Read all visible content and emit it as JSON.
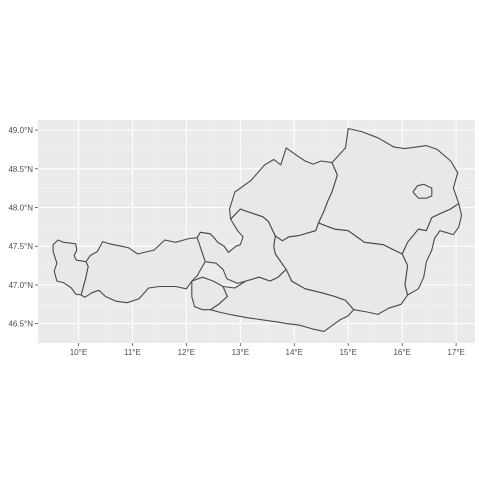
{
  "chart_data": {
    "type": "map",
    "title": "",
    "xlabel": "",
    "ylabel": "",
    "xlim": [
      9.25,
      17.35
    ],
    "ylim": [
      46.25,
      49.13
    ],
    "x_ticks": [
      {
        "value": 10,
        "label": "10°E"
      },
      {
        "value": 11,
        "label": "11°E"
      },
      {
        "value": 12,
        "label": "12°E"
      },
      {
        "value": 13,
        "label": "13°E"
      },
      {
        "value": 14,
        "label": "14°E"
      },
      {
        "value": 15,
        "label": "15°E"
      },
      {
        "value": 16,
        "label": "16°E"
      },
      {
        "value": 17,
        "label": "17°E"
      }
    ],
    "y_ticks": [
      {
        "value": 46.5,
        "label": "46.5°N"
      },
      {
        "value": 47.0,
        "label": "47.0°N"
      },
      {
        "value": 47.5,
        "label": "47.5°N"
      },
      {
        "value": 48.0,
        "label": "48.0°N"
      },
      {
        "value": 48.5,
        "label": "48.5°N"
      },
      {
        "value": 49.0,
        "label": "49.0°N"
      }
    ],
    "grid": true,
    "colors": {
      "panel_background": "#ebebeb",
      "grid_major": "#ffffff",
      "region_fill": "#e8e8e8",
      "region_border": "#4a4a4a",
      "tick_text": "#4d4d4d"
    },
    "regions": [
      {
        "id": "vorarlberg",
        "coords": [
          [
            9.53,
            47.52
          ],
          [
            9.62,
            47.58
          ],
          [
            9.72,
            47.55
          ],
          [
            9.85,
            47.54
          ],
          [
            9.95,
            47.53
          ],
          [
            9.97,
            47.45
          ],
          [
            9.92,
            47.38
          ],
          [
            9.96,
            47.32
          ],
          [
            10.14,
            47.3
          ],
          [
            10.18,
            47.24
          ],
          [
            10.14,
            47.1
          ],
          [
            10.1,
            47.0
          ],
          [
            10.05,
            46.87
          ],
          [
            9.95,
            46.88
          ],
          [
            9.87,
            46.96
          ],
          [
            9.72,
            47.03
          ],
          [
            9.6,
            47.05
          ],
          [
            9.55,
            47.18
          ],
          [
            9.6,
            47.28
          ],
          [
            9.53,
            47.43
          ]
        ]
      },
      {
        "id": "tirol",
        "coords": [
          [
            10.14,
            47.3
          ],
          [
            10.22,
            47.38
          ],
          [
            10.35,
            47.43
          ],
          [
            10.45,
            47.56
          ],
          [
            10.58,
            47.53
          ],
          [
            10.8,
            47.5
          ],
          [
            10.93,
            47.48
          ],
          [
            11.1,
            47.4
          ],
          [
            11.22,
            47.42
          ],
          [
            11.4,
            47.45
          ],
          [
            11.6,
            47.58
          ],
          [
            11.8,
            47.55
          ],
          [
            12.05,
            47.6
          ],
          [
            12.2,
            47.61
          ],
          [
            12.26,
            47.68
          ],
          [
            12.44,
            47.66
          ],
          [
            12.5,
            47.62
          ],
          [
            12.58,
            47.55
          ],
          [
            12.7,
            47.5
          ],
          [
            12.78,
            47.42
          ],
          [
            12.66,
            47.38
          ],
          [
            12.5,
            47.32
          ],
          [
            12.35,
            47.3
          ],
          [
            12.2,
            47.12
          ],
          [
            12.1,
            47.05
          ],
          [
            12.0,
            46.95
          ],
          [
            11.8,
            46.98
          ],
          [
            11.5,
            46.98
          ],
          [
            11.3,
            46.96
          ],
          [
            11.12,
            46.82
          ],
          [
            10.9,
            46.77
          ],
          [
            10.7,
            46.79
          ],
          [
            10.5,
            46.85
          ],
          [
            10.38,
            46.93
          ],
          [
            10.25,
            46.9
          ],
          [
            10.12,
            46.84
          ],
          [
            10.05,
            46.87
          ],
          [
            10.1,
            47.0
          ],
          [
            10.14,
            47.1
          ],
          [
            10.18,
            47.24
          ]
        ]
      },
      {
        "id": "osttirol",
        "coords": [
          [
            12.1,
            47.05
          ],
          [
            12.3,
            47.1
          ],
          [
            12.5,
            47.05
          ],
          [
            12.68,
            46.98
          ],
          [
            12.76,
            46.85
          ],
          [
            12.6,
            46.75
          ],
          [
            12.45,
            46.68
          ],
          [
            12.3,
            46.68
          ],
          [
            12.15,
            46.72
          ],
          [
            12.1,
            46.85
          ]
        ]
      },
      {
        "id": "salzburg",
        "coords": [
          [
            12.2,
            47.61
          ],
          [
            12.26,
            47.68
          ],
          [
            12.44,
            47.66
          ],
          [
            12.5,
            47.62
          ],
          [
            12.58,
            47.55
          ],
          [
            12.7,
            47.5
          ],
          [
            12.78,
            47.42
          ],
          [
            12.92,
            47.5
          ],
          [
            13.0,
            47.52
          ],
          [
            13.05,
            47.62
          ],
          [
            12.95,
            47.7
          ],
          [
            12.82,
            47.85
          ],
          [
            13.0,
            47.98
          ],
          [
            13.12,
            47.95
          ],
          [
            13.25,
            47.92
          ],
          [
            13.42,
            47.88
          ],
          [
            13.52,
            47.82
          ],
          [
            13.65,
            47.63
          ],
          [
            13.62,
            47.5
          ],
          [
            13.65,
            47.4
          ],
          [
            13.75,
            47.3
          ],
          [
            13.85,
            47.2
          ],
          [
            13.7,
            47.1
          ],
          [
            13.55,
            47.05
          ],
          [
            13.35,
            47.1
          ],
          [
            13.1,
            47.05
          ],
          [
            12.95,
            47.02
          ],
          [
            12.75,
            47.08
          ],
          [
            12.68,
            47.2
          ],
          [
            12.55,
            47.28
          ],
          [
            12.35,
            47.3
          ]
        ]
      },
      {
        "id": "oberoesterreich",
        "coords": [
          [
            12.82,
            47.85
          ],
          [
            12.8,
            47.98
          ],
          [
            12.9,
            48.2
          ],
          [
            13.2,
            48.35
          ],
          [
            13.45,
            48.55
          ],
          [
            13.62,
            48.62
          ],
          [
            13.75,
            48.55
          ],
          [
            13.85,
            48.77
          ],
          [
            14.05,
            48.67
          ],
          [
            14.2,
            48.6
          ],
          [
            14.35,
            48.56
          ],
          [
            14.5,
            48.6
          ],
          [
            14.7,
            48.58
          ],
          [
            14.8,
            48.42
          ],
          [
            14.7,
            48.2
          ],
          [
            14.62,
            48.08
          ],
          [
            14.55,
            47.95
          ],
          [
            14.45,
            47.8
          ],
          [
            14.4,
            47.7
          ],
          [
            14.1,
            47.64
          ],
          [
            13.9,
            47.62
          ],
          [
            13.78,
            47.57
          ],
          [
            13.65,
            47.63
          ],
          [
            13.52,
            47.82
          ],
          [
            13.42,
            47.88
          ],
          [
            13.25,
            47.92
          ],
          [
            13.12,
            47.95
          ],
          [
            13.0,
            47.98
          ]
        ]
      },
      {
        "id": "niederoesterreich",
        "coords": [
          [
            14.7,
            48.58
          ],
          [
            14.95,
            48.77
          ],
          [
            15.0,
            49.02
          ],
          [
            15.25,
            48.98
          ],
          [
            15.55,
            48.9
          ],
          [
            15.85,
            48.78
          ],
          [
            16.05,
            48.76
          ],
          [
            16.45,
            48.8
          ],
          [
            16.65,
            48.75
          ],
          [
            16.9,
            48.6
          ],
          [
            17.03,
            48.45
          ],
          [
            16.95,
            48.25
          ],
          [
            17.05,
            48.05
          ],
          [
            16.9,
            47.98
          ],
          [
            16.7,
            47.92
          ],
          [
            16.55,
            47.87
          ],
          [
            16.45,
            47.7
          ],
          [
            16.3,
            47.72
          ],
          [
            16.1,
            47.55
          ],
          [
            16.0,
            47.4
          ],
          [
            15.85,
            47.45
          ],
          [
            15.65,
            47.52
          ],
          [
            15.3,
            47.55
          ],
          [
            15.0,
            47.7
          ],
          [
            14.75,
            47.72
          ],
          [
            14.45,
            47.8
          ],
          [
            14.55,
            47.95
          ],
          [
            14.62,
            48.08
          ],
          [
            14.7,
            48.2
          ],
          [
            14.8,
            48.42
          ]
        ]
      },
      {
        "id": "wien",
        "coords": [
          [
            16.2,
            48.2
          ],
          [
            16.28,
            48.28
          ],
          [
            16.4,
            48.3
          ],
          [
            16.55,
            48.25
          ],
          [
            16.55,
            48.15
          ],
          [
            16.45,
            48.12
          ],
          [
            16.3,
            48.12
          ]
        ]
      },
      {
        "id": "burgenland",
        "coords": [
          [
            16.45,
            47.7
          ],
          [
            16.55,
            47.87
          ],
          [
            16.7,
            47.92
          ],
          [
            16.9,
            47.98
          ],
          [
            17.05,
            48.05
          ],
          [
            17.1,
            47.9
          ],
          [
            17.05,
            47.75
          ],
          [
            16.95,
            47.65
          ],
          [
            16.7,
            47.7
          ],
          [
            16.6,
            47.6
          ],
          [
            16.55,
            47.45
          ],
          [
            16.45,
            47.3
          ],
          [
            16.4,
            47.1
          ],
          [
            16.3,
            46.95
          ],
          [
            16.1,
            46.87
          ],
          [
            16.05,
            47.0
          ],
          [
            16.1,
            47.25
          ],
          [
            16.0,
            47.4
          ],
          [
            16.1,
            47.55
          ],
          [
            16.3,
            47.72
          ]
        ]
      },
      {
        "id": "steiermark",
        "coords": [
          [
            13.65,
            47.63
          ],
          [
            13.78,
            47.57
          ],
          [
            13.9,
            47.62
          ],
          [
            14.1,
            47.64
          ],
          [
            14.4,
            47.7
          ],
          [
            14.45,
            47.8
          ],
          [
            14.75,
            47.72
          ],
          [
            15.0,
            47.7
          ],
          [
            15.3,
            47.55
          ],
          [
            15.65,
            47.52
          ],
          [
            15.85,
            47.45
          ],
          [
            16.0,
            47.4
          ],
          [
            16.1,
            47.25
          ],
          [
            16.05,
            47.0
          ],
          [
            16.1,
            46.87
          ],
          [
            15.98,
            46.75
          ],
          [
            15.75,
            46.7
          ],
          [
            15.55,
            46.62
          ],
          [
            15.35,
            46.65
          ],
          [
            15.1,
            46.68
          ],
          [
            14.95,
            46.8
          ],
          [
            14.75,
            46.85
          ],
          [
            14.5,
            46.9
          ],
          [
            14.2,
            46.95
          ],
          [
            13.95,
            47.05
          ],
          [
            13.85,
            47.2
          ],
          [
            13.75,
            47.3
          ],
          [
            13.65,
            47.4
          ],
          [
            13.62,
            47.5
          ]
        ]
      },
      {
        "id": "kaernten",
        "coords": [
          [
            12.68,
            46.98
          ],
          [
            12.9,
            46.96
          ],
          [
            13.1,
            47.05
          ],
          [
            13.35,
            47.1
          ],
          [
            13.55,
            47.05
          ],
          [
            13.7,
            47.1
          ],
          [
            13.85,
            47.2
          ],
          [
            13.95,
            47.05
          ],
          [
            14.2,
            46.95
          ],
          [
            14.5,
            46.9
          ],
          [
            14.75,
            46.85
          ],
          [
            14.95,
            46.8
          ],
          [
            15.1,
            46.68
          ],
          [
            15.0,
            46.6
          ],
          [
            14.85,
            46.55
          ],
          [
            14.55,
            46.4
          ],
          [
            14.35,
            46.43
          ],
          [
            14.1,
            46.48
          ],
          [
            13.85,
            46.5
          ],
          [
            13.7,
            46.52
          ],
          [
            13.4,
            46.55
          ],
          [
            13.1,
            46.58
          ],
          [
            12.8,
            46.62
          ],
          [
            12.6,
            46.65
          ],
          [
            12.45,
            46.68
          ],
          [
            12.6,
            46.75
          ],
          [
            12.76,
            46.85
          ]
        ]
      }
    ]
  }
}
